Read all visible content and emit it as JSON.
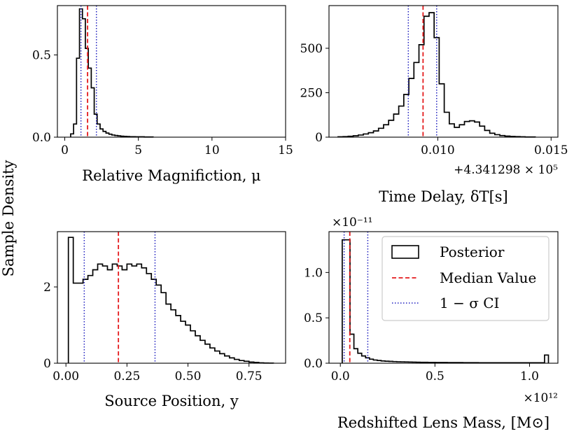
{
  "figure": {
    "ylabel": "Sample Density",
    "legend": {
      "placement": "top-right",
      "panel_index": 3,
      "entries": [
        {
          "label": "Posterior",
          "style": "step"
        },
        {
          "label": "Median Value",
          "style": "dashed"
        },
        {
          "label": "1 − σ CI",
          "style": "dotted"
        }
      ]
    },
    "colors": {
      "hist": "#000000",
      "median": "#e41a1c",
      "ci": "#1f1fbf"
    }
  },
  "chart_data": [
    {
      "type": "histogram",
      "xlabel": "Relative Magnifiction, μ",
      "ylabel": "",
      "xlim": [
        -0.5,
        15
      ],
      "ylim": [
        0,
        0.8
      ],
      "xticks": [
        0,
        5,
        10,
        15
      ],
      "xtick_labels": [
        "0",
        "5",
        "10",
        "15"
      ],
      "yticks": [
        0.0,
        0.5
      ],
      "ytick_labels": [
        "0.0",
        "0.5"
      ],
      "offset_text": "",
      "median": 1.55,
      "ci": [
        1.1,
        2.15
      ],
      "bin_edges_range": [
        0.4,
        6.0
      ],
      "values": [
        0.02,
        0.08,
        0.48,
        0.78,
        0.72,
        0.54,
        0.42,
        0.3,
        0.14,
        0.08,
        0.05,
        0.035,
        0.025,
        0.018,
        0.013,
        0.01,
        0.008,
        0.006,
        0.005,
        0.004,
        0.003,
        0.003,
        0.002,
        0.002,
        0.002,
        0.001,
        0.001,
        0.001
      ]
    },
    {
      "type": "histogram",
      "xlabel": "Time Delay, δT[s]",
      "ylabel": "",
      "xlim": [
        0.0052,
        0.0153
      ],
      "ylim": [
        0,
        740
      ],
      "xticks": [
        0.01,
        0.015
      ],
      "xtick_labels": [
        "0.010",
        "0.015"
      ],
      "yticks": [
        0,
        250,
        500
      ],
      "ytick_labels": [
        "0",
        "250",
        "500"
      ],
      "offset_text": "+4.341298 × 10⁵",
      "median": 0.00935,
      "ci": [
        0.0087,
        0.00995
      ],
      "bin_edges_range": [
        0.0056,
        0.0143
      ],
      "values": [
        2,
        3,
        5,
        8,
        12,
        18,
        25,
        35,
        50,
        70,
        95,
        130,
        175,
        240,
        330,
        420,
        520,
        680,
        700,
        560,
        300,
        140,
        75,
        55,
        70,
        88,
        92,
        85,
        62,
        38,
        22,
        14,
        9,
        6,
        4,
        3,
        2,
        1,
        1
      ]
    },
    {
      "type": "histogram",
      "xlabel": "Source Position, y",
      "ylabel": "",
      "xlim": [
        -0.035,
        0.9
      ],
      "ylim": [
        0,
        3.45
      ],
      "xticks": [
        0.0,
        0.25,
        0.5,
        0.75
      ],
      "xtick_labels": [
        "0.00",
        "0.25",
        "0.50",
        "0.75"
      ],
      "yticks": [
        0,
        2
      ],
      "ytick_labels": [
        "0",
        "2"
      ],
      "offset_text": "",
      "median": 0.215,
      "ci": [
        0.075,
        0.365
      ],
      "bin_edges_range": [
        0.01,
        0.85
      ],
      "values": [
        3.3,
        2.1,
        2.1,
        2.2,
        2.3,
        2.45,
        2.6,
        2.55,
        2.45,
        2.6,
        2.55,
        2.45,
        2.6,
        2.55,
        2.6,
        2.5,
        2.35,
        2.2,
        2.05,
        1.85,
        1.55,
        1.4,
        1.25,
        1.1,
        1.0,
        0.85,
        0.72,
        0.6,
        0.5,
        0.4,
        0.32,
        0.25,
        0.19,
        0.14,
        0.1,
        0.07,
        0.05,
        0.03,
        0.02,
        0.01,
        0.005,
        0.003
      ]
    },
    {
      "type": "histogram",
      "xlabel": "Redshifted Lens Mass, [M⊙]",
      "ylabel": "",
      "xlim": [
        -0.06,
        1.15
      ],
      "ylim": [
        0,
        1.45
      ],
      "xticks": [
        0.0,
        0.5,
        1.0
      ],
      "xtick_labels": [
        "0.0",
        "0.5",
        "1.0"
      ],
      "yticks": [
        0.0,
        0.5,
        1.0
      ],
      "ytick_labels": [
        "0.0",
        "0.5",
        "1.0"
      ],
      "x_offset_text": "×10¹²",
      "y_offset_text": "×10⁻¹¹",
      "median": 0.05,
      "ci": [
        0.02,
        0.145
      ],
      "bin_edges_range": [
        0.01,
        1.1
      ],
      "values": [
        1.36,
        1.36,
        0.32,
        0.16,
        0.11,
        0.08,
        0.06,
        0.045,
        0.035,
        0.03,
        0.025,
        0.022,
        0.02,
        0.018,
        0.016,
        0.015,
        0.014,
        0.013,
        0.012,
        0.011,
        0.01,
        0.01,
        0.009,
        0.009,
        0.008,
        0.008,
        0.008,
        0.007,
        0.007,
        0.007,
        0.007,
        0.006,
        0.006,
        0.006,
        0.006,
        0.005,
        0.005,
        0.005,
        0.005,
        0.005,
        0.005,
        0.005,
        0.005,
        0.005,
        0.005,
        0.005,
        0.005,
        0.005,
        0.005,
        0.005,
        0.005,
        0.005,
        0.09
      ]
    }
  ]
}
